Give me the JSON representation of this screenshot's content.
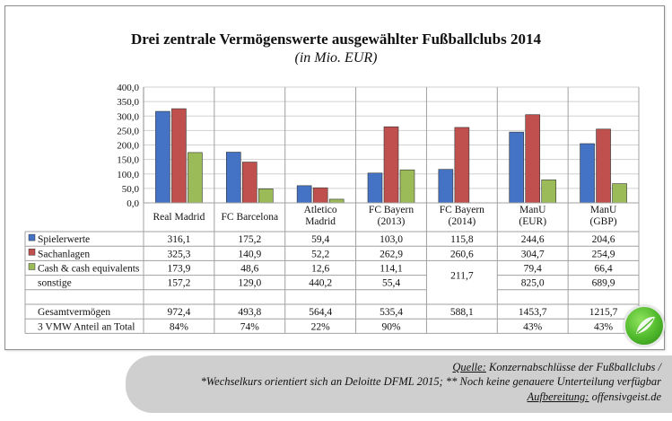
{
  "chart_data": {
    "type": "bar",
    "title": "Drei zentrale Vermögenswerte ausgewählter Fußballclubs 2014",
    "subtitle": "(in Mio. EUR)",
    "ylim": [
      0,
      400
    ],
    "y_ticks": [
      "0,0",
      "50,0",
      "100,0",
      "150,0",
      "200,0",
      "250,0",
      "300,0",
      "350,0",
      "400,0"
    ],
    "grid": true,
    "categories": [
      [
        "Real Madrid"
      ],
      [
        "FC Barcelona"
      ],
      [
        "Atletico",
        "Madrid"
      ],
      [
        "FC Bayern",
        "(2013)"
      ],
      [
        "FC Bayern",
        "(2014)"
      ],
      [
        "ManU",
        "(EUR)"
      ],
      [
        "ManU",
        "(GBP)"
      ]
    ],
    "series": [
      {
        "name": "Spielerwerte",
        "color": "#4472c4",
        "values": [
          316.1,
          175.2,
          59.4,
          103.0,
          115.8,
          244.6,
          204.6
        ]
      },
      {
        "name": "Sachanlagen",
        "color": "#c0504d",
        "values": [
          325.3,
          140.9,
          52.2,
          262.9,
          260.6,
          304.7,
          254.9
        ]
      },
      {
        "name": "Cash & cash equivalents",
        "color": "#9bbb59",
        "values": [
          173.9,
          48.6,
          12.6,
          114.1,
          null,
          79.4,
          66.4
        ]
      }
    ],
    "table": {
      "rows": [
        {
          "label": "Spielerwerte",
          "legend": 0,
          "cells": [
            "316,1",
            "175,2",
            "59,4",
            "103,0",
            "115,8",
            "244,6",
            "204,6"
          ]
        },
        {
          "label": "Sachanlagen",
          "legend": 1,
          "cells": [
            "325,3",
            "140,9",
            "52,2",
            "262,9",
            "260,6",
            "304,7",
            "254,9"
          ]
        },
        {
          "label": "Cash & cash equivalents",
          "legend": 2,
          "cells": [
            "173,9",
            "48,6",
            "12,6",
            "114,1",
            "",
            "79,4",
            "66,4"
          ]
        },
        {
          "label": "sonstige",
          "legend": null,
          "cells": [
            "157,2",
            "129,0",
            "440,2",
            "55,4",
            "",
            "825,0",
            "689,9"
          ]
        },
        {
          "label": "",
          "legend": null,
          "cells": [
            "",
            "",
            "",
            "",
            "",
            "",
            ""
          ]
        },
        {
          "label": "Gesamtvermögen",
          "legend": null,
          "cells": [
            "972,4",
            "493,8",
            "564,4",
            "535,4",
            "588,1",
            "1453,7",
            "1215,7"
          ]
        },
        {
          "label": "3 VMW Anteil an Total",
          "legend": null,
          "cells": [
            "84%",
            "74%",
            "22%",
            "90%",
            "",
            "43%",
            "43%"
          ]
        }
      ],
      "merged_cell": "211,7"
    }
  },
  "footer": {
    "source_label": "Quelle:",
    "source_text": " Konzernabschlüsse der Fußballclubs /",
    "note": "*Wechselkurs orientiert sich an Deloitte DFML 2015; ** Noch keine genauere Unterteilung verfügbar",
    "author_label": "Aufbereitung:",
    "author_text": " offensivgeist.de"
  }
}
